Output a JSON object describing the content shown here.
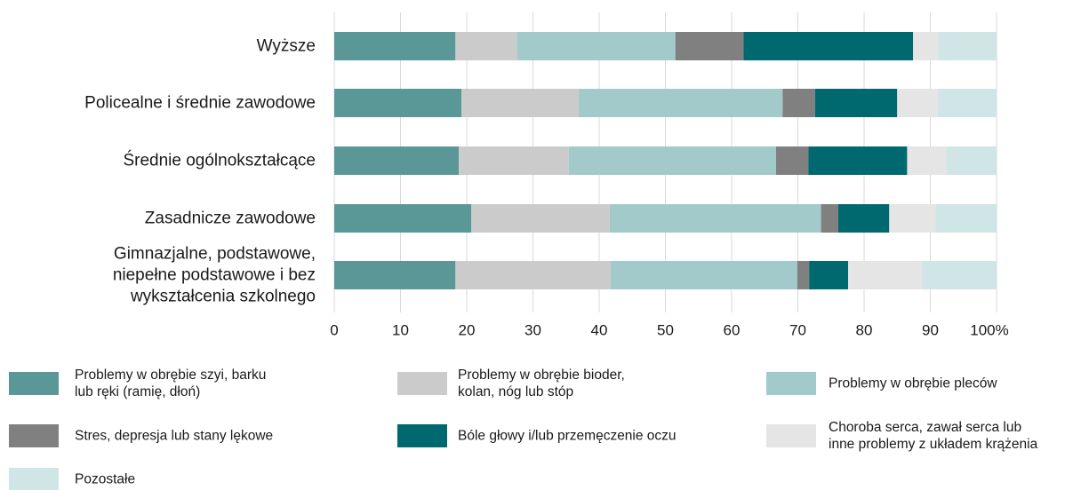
{
  "chart_data": {
    "type": "bar",
    "orientation": "horizontal",
    "stacked": true,
    "title": "",
    "xlabel": "",
    "ylabel": "",
    "xlim": [
      0,
      100
    ],
    "x_ticks": [
      "0",
      "10",
      "20",
      "30",
      "40",
      "50",
      "60",
      "70",
      "80",
      "90",
      "100%"
    ],
    "grid": "vertical",
    "legend_position": "bottom",
    "categories": [
      "Wyższe",
      "Policealne i średnie zawodowe",
      "Średnie ogólnokształcące",
      "Zasadnicze zawodowe",
      "Gimnazjalne, podstawowe, niepełne podstawowe i bez wykształcenia szkolnego"
    ],
    "series": [
      {
        "name": "Problemy w obrębie szyi, barku lub ręki (ramię, dłoń)",
        "color": "#5a9898",
        "values": [
          18.3,
          19.2,
          18.8,
          20.7,
          18.3
        ]
      },
      {
        "name": "Problemy w obrębie bioder, kolan, nóg lub stóp",
        "color": "#cbcbcb",
        "values": [
          9.3,
          17.7,
          16.6,
          20.9,
          23.4
        ]
      },
      {
        "name": "Problemy w obrębie pleców",
        "color": "#a2cacb",
        "values": [
          23.9,
          30.8,
          31.3,
          31.9,
          28.2
        ]
      },
      {
        "name": "Stres, depresja lub stany lękowe",
        "color": "#808080",
        "values": [
          10.3,
          4.9,
          4.9,
          2.6,
          1.8
        ]
      },
      {
        "name": "Bóle głowy i/lub przemęczenie oczu",
        "color": "#00686f",
        "values": [
          25.6,
          12.4,
          14.9,
          7.7,
          5.9
        ]
      },
      {
        "name": "Choroba serca, zawał serca lub inne problemy z układem krążenia",
        "color": "#e5e5e5",
        "values": [
          3.8,
          6.1,
          5.9,
          7.0,
          11.1
        ]
      },
      {
        "name": "Pozostałe",
        "color": "#cfe5e6",
        "values": [
          8.8,
          8.9,
          7.6,
          9.2,
          11.3
        ]
      }
    ]
  },
  "legend": {
    "items": [
      {
        "lines": [
          "Problemy w obrębie szyi, barku",
          "lub ręki (ramię, dłoń)"
        ],
        "color": "#5a9898"
      },
      {
        "lines": [
          "Problemy w obrębie bioder,",
          "kolan, nóg lub stóp"
        ],
        "color": "#cbcbcb"
      },
      {
        "lines": [
          "Problemy w obrębie pleców"
        ],
        "color": "#a2cacb"
      },
      {
        "lines": [
          "Stres, depresja lub stany lękowe"
        ],
        "color": "#808080"
      },
      {
        "lines": [
          "Bóle głowy i/lub przemęczenie oczu"
        ],
        "color": "#00686f"
      },
      {
        "lines": [
          "Choroba serca, zawał serca lub",
          "inne problemy z układem krążenia"
        ],
        "color": "#e5e5e5"
      },
      {
        "lines": [
          "Pozostałe"
        ],
        "color": "#cfe5e6"
      }
    ]
  },
  "category_label_lines": [
    [
      "Wyższe"
    ],
    [
      "Policealne i średnie zawodowe"
    ],
    [
      "Średnie ogólnokształcące"
    ],
    [
      "Zasadnicze zawodowe"
    ],
    [
      "Gimnazjalne, podstawowe,",
      "niepełne podstawowe i bez",
      "wykształcenia szkolnego"
    ]
  ]
}
